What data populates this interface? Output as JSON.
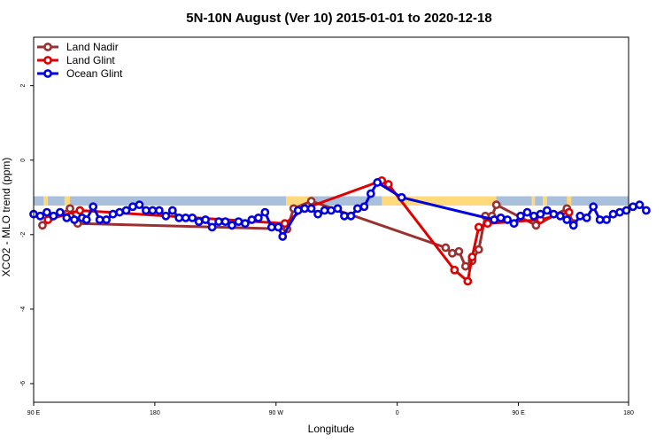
{
  "chart_data": {
    "type": "line",
    "title": "5N-10N August (Ver 10)   2015-01-01 to 2020-12-18",
    "xlabel": "Longitude",
    "ylabel": "XCO2 - MLO trend (ppm)",
    "xlim": [
      -90,
      180
    ],
    "ylim": [
      -6.5,
      3.3
    ],
    "x_ticks": [
      {
        "value": -90,
        "label": "90 E"
      },
      {
        "value": -35,
        "label": "180"
      },
      {
        "value": 20,
        "label": "90 W"
      },
      {
        "value": 75,
        "label": "0"
      },
      {
        "value": 130,
        "label": "90 E"
      },
      {
        "value": 180,
        "label": "180"
      }
    ],
    "y_ticks": [
      {
        "value": 2,
        "label": "2"
      },
      {
        "value": 0,
        "label": "0"
      },
      {
        "value": -2,
        "label": "-2"
      },
      {
        "value": -4,
        "label": "-4"
      },
      {
        "value": -6,
        "label": "-6"
      }
    ],
    "band": {
      "ymin": -1.22,
      "ymax": -0.97,
      "color": "#a9c0dc",
      "land_color": "#ffd97a"
    },
    "land_segments": [
      [
        -85.5,
        -83.5
      ],
      [
        -76,
        -73.5
      ],
      [
        24.5,
        36
      ],
      [
        68,
        84
      ],
      [
        84,
        120
      ],
      [
        136,
        137.5
      ],
      [
        141,
        143
      ],
      [
        152,
        154
      ]
    ],
    "legend": {
      "position": "top-left"
    },
    "series": [
      {
        "name": "Land Nadir",
        "color": "#9b3030",
        "points": [
          [
            -86,
            -1.75
          ],
          [
            -73.5,
            -1.3
          ],
          [
            -70,
            -1.7
          ],
          [
            25,
            -1.85
          ],
          [
            28,
            -1.3
          ],
          [
            36,
            -1.1
          ],
          [
            97,
            -2.35
          ],
          [
            100,
            -2.5
          ],
          [
            103,
            -2.45
          ],
          [
            106,
            -2.85
          ],
          [
            109,
            -2.7
          ],
          [
            112,
            -2.4
          ],
          [
            115,
            -1.5
          ],
          [
            118,
            -1.5
          ],
          [
            120,
            -1.2
          ],
          [
            138,
            -1.75
          ],
          [
            152,
            -1.3
          ],
          [
            155,
            -1.7
          ]
        ]
      },
      {
        "name": "Land Glint",
        "color": "#e00000",
        "points": [
          [
            -83.5,
            -1.6
          ],
          [
            -69,
            -1.35
          ],
          [
            24,
            -1.7
          ],
          [
            33,
            -1.3
          ],
          [
            68,
            -0.55
          ],
          [
            71,
            -0.65
          ],
          [
            101,
            -2.95
          ],
          [
            107,
            -3.25
          ],
          [
            109,
            -2.6
          ],
          [
            112,
            -1.8
          ],
          [
            116,
            -1.7
          ],
          [
            140,
            -1.6
          ],
          [
            153,
            -1.4
          ]
        ]
      },
      {
        "name": "Ocean Glint",
        "color": "#0000e0",
        "points": [
          [
            -90,
            -1.45
          ],
          [
            -87,
            -1.5
          ],
          [
            -84,
            -1.4
          ],
          [
            -81,
            -1.5
          ],
          [
            -78,
            -1.4
          ],
          [
            -75,
            -1.55
          ],
          [
            -71.5,
            -1.6
          ],
          [
            -68,
            -1.55
          ],
          [
            -66,
            -1.6
          ],
          [
            -63,
            -1.25
          ],
          [
            -60,
            -1.6
          ],
          [
            -57,
            -1.6
          ],
          [
            -54,
            -1.45
          ],
          [
            -51,
            -1.4
          ],
          [
            -48,
            -1.35
          ],
          [
            -45,
            -1.25
          ],
          [
            -42,
            -1.2
          ],
          [
            -39,
            -1.35
          ],
          [
            -36,
            -1.35
          ],
          [
            -33,
            -1.35
          ],
          [
            -30,
            -1.5
          ],
          [
            -27,
            -1.35
          ],
          [
            -24,
            -1.55
          ],
          [
            -21,
            -1.55
          ],
          [
            -18,
            -1.55
          ],
          [
            -15,
            -1.65
          ],
          [
            -12,
            -1.6
          ],
          [
            -9,
            -1.8
          ],
          [
            -6,
            -1.65
          ],
          [
            -3,
            -1.65
          ],
          [
            0,
            -1.75
          ],
          [
            3,
            -1.65
          ],
          [
            6,
            -1.7
          ],
          [
            9,
            -1.6
          ],
          [
            12,
            -1.55
          ],
          [
            15,
            -1.4
          ],
          [
            18,
            -1.8
          ],
          [
            21,
            -1.8
          ],
          [
            23,
            -2.05
          ],
          [
            30,
            -1.35
          ],
          [
            33,
            -1.3
          ],
          [
            36,
            -1.3
          ],
          [
            39,
            -1.45
          ],
          [
            42,
            -1.35
          ],
          [
            45,
            -1.35
          ],
          [
            48,
            -1.3
          ],
          [
            51,
            -1.5
          ],
          [
            54,
            -1.5
          ],
          [
            57,
            -1.3
          ],
          [
            60,
            -1.25
          ],
          [
            63,
            -0.9
          ],
          [
            66,
            -0.6
          ],
          [
            77,
            -1.0
          ],
          [
            119,
            -1.6
          ],
          [
            122,
            -1.55
          ],
          [
            125,
            -1.6
          ],
          [
            128,
            -1.7
          ],
          [
            131,
            -1.5
          ],
          [
            134,
            -1.4
          ],
          [
            137,
            -1.5
          ],
          [
            140,
            -1.45
          ],
          [
            143,
            -1.35
          ],
          [
            146,
            -1.45
          ],
          [
            149,
            -1.5
          ],
          [
            152,
            -1.6
          ],
          [
            155,
            -1.75
          ],
          [
            158,
            -1.5
          ],
          [
            161,
            -1.55
          ],
          [
            164,
            -1.25
          ],
          [
            167,
            -1.6
          ],
          [
            170,
            -1.6
          ],
          [
            173,
            -1.45
          ],
          [
            176,
            -1.4
          ],
          [
            179,
            -1.35
          ],
          [
            182,
            -1.25
          ],
          [
            185,
            -1.2
          ],
          [
            188,
            -1.35
          ]
        ]
      }
    ]
  }
}
